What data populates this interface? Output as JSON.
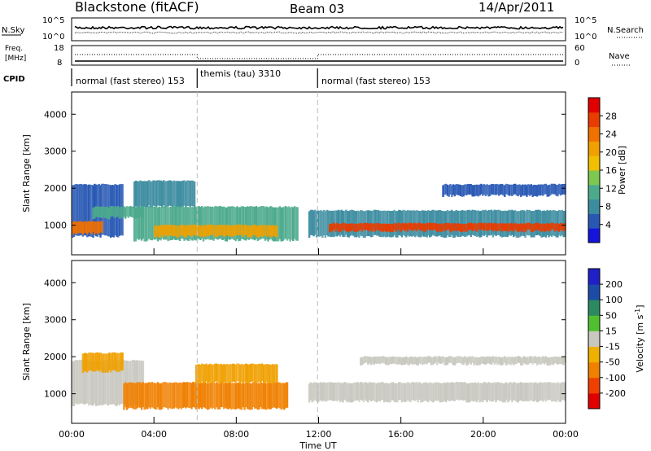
{
  "header": {
    "title": "Blackstone (fitACF)",
    "beam": "Beam 03",
    "date": "14/Apr/2011"
  },
  "aux_panels": {
    "nsky": {
      "left_label": "N.Sky",
      "left_ticks": [
        "10^5",
        "10^0"
      ],
      "right_ticks": [
        "10^5",
        "10^0"
      ],
      "right_label": "N.Search"
    },
    "freq": {
      "left_label_1": "Freq.",
      "left_label_2": "[MHz]",
      "left_ticks": [
        "18",
        "8"
      ],
      "right_ticks": [
        "60",
        "0"
      ],
      "right_label": "Nave"
    },
    "cpid": {
      "label": "CPID",
      "segments": [
        {
          "label": "normal (fast stereo) 153",
          "start_h": 0,
          "end_h": 6.1
        },
        {
          "label": "themis (tau) 3310",
          "start_h": 6.1,
          "end_h": 11.95
        },
        {
          "label": "normal (fast stereo) 153",
          "start_h": 11.95,
          "end_h": 24
        }
      ]
    }
  },
  "chart_data": [
    {
      "type": "heatmap",
      "name": "power",
      "ylabel": "Slant Range [km]",
      "yticks": [
        "1000",
        "2000",
        "3000",
        "4000"
      ],
      "ylim": [
        200,
        4600
      ],
      "xlim": [
        0,
        24
      ],
      "colorbar": {
        "label": "Power [dB]",
        "ticks": [
          "4",
          "8",
          "12",
          "16",
          "20",
          "24",
          "28"
        ],
        "range": [
          0,
          32
        ],
        "colors": [
          "#1414dc",
          "#2858b4",
          "#3c8ca0",
          "#4caa8c",
          "#7dc850",
          "#f0c000",
          "#f0a000",
          "#f07000",
          "#e83c00",
          "#e00000"
        ]
      },
      "bands": [
        {
          "start_h": 0.0,
          "end_h": 2.5,
          "low_km": 700,
          "high_km": 2100,
          "color": "#2858b4"
        },
        {
          "start_h": 0.0,
          "end_h": 1.5,
          "low_km": 780,
          "high_km": 1100,
          "color": "#f07000"
        },
        {
          "start_h": 1.0,
          "end_h": 3.5,
          "low_km": 1200,
          "high_km": 1500,
          "color": "#4caa8c"
        },
        {
          "start_h": 3.0,
          "end_h": 6.0,
          "low_km": 1500,
          "high_km": 2200,
          "color": "#3c8ca0"
        },
        {
          "start_h": 3.0,
          "end_h": 11.0,
          "low_km": 600,
          "high_km": 1500,
          "color": "#4caa8c"
        },
        {
          "start_h": 4.0,
          "end_h": 10.0,
          "low_km": 700,
          "high_km": 1000,
          "color": "#f0a000"
        },
        {
          "start_h": 11.5,
          "end_h": 24.0,
          "low_km": 700,
          "high_km": 1400,
          "color": "#3c8ca0"
        },
        {
          "start_h": 12.5,
          "end_h": 24.0,
          "low_km": 850,
          "high_km": 1050,
          "color": "#e83c00"
        },
        {
          "start_h": 18.0,
          "end_h": 24.0,
          "low_km": 1800,
          "high_km": 2100,
          "color": "#2858b4"
        }
      ]
    },
    {
      "type": "heatmap",
      "name": "velocity",
      "ylabel": "Slant Range [km]",
      "yticks": [
        "1000",
        "2000",
        "3000",
        "4000"
      ],
      "ylim": [
        200,
        4600
      ],
      "xlim": [
        0,
        24
      ],
      "xlabel": "Time UT",
      "xticks": [
        "00:00",
        "04:00",
        "08:00",
        "12:00",
        "16:00",
        "20:00",
        "00:00"
      ],
      "colorbar": {
        "label": "Velocity [m s",
        "label_sup": "-1",
        "label_end": "]",
        "ticks": [
          "-200",
          "-100",
          "-50",
          "-15",
          "15",
          "50",
          "100",
          "200"
        ],
        "colors": [
          "#e00000",
          "#f04000",
          "#f08000",
          "#f0b000",
          "#c8c8c0",
          "#50c030",
          "#2c8a60",
          "#1c4ca8",
          "#2020c8"
        ]
      },
      "bands": [
        {
          "start_h": 0.0,
          "end_h": 3.5,
          "low_km": 700,
          "high_km": 1900,
          "color": "#c8c8c0"
        },
        {
          "start_h": 0.5,
          "end_h": 2.5,
          "low_km": 1600,
          "high_km": 2100,
          "color": "#f0a000"
        },
        {
          "start_h": 2.5,
          "end_h": 10.5,
          "low_km": 600,
          "high_km": 1300,
          "color": "#f08000"
        },
        {
          "start_h": 6.0,
          "end_h": 10.0,
          "low_km": 1300,
          "high_km": 1800,
          "color": "#f0a000"
        },
        {
          "start_h": 11.5,
          "end_h": 24.0,
          "low_km": 800,
          "high_km": 1300,
          "color": "#c8c8c0"
        },
        {
          "start_h": 14.0,
          "end_h": 24.0,
          "low_km": 1800,
          "high_km": 2000,
          "color": "#c8c8c0"
        }
      ]
    }
  ]
}
